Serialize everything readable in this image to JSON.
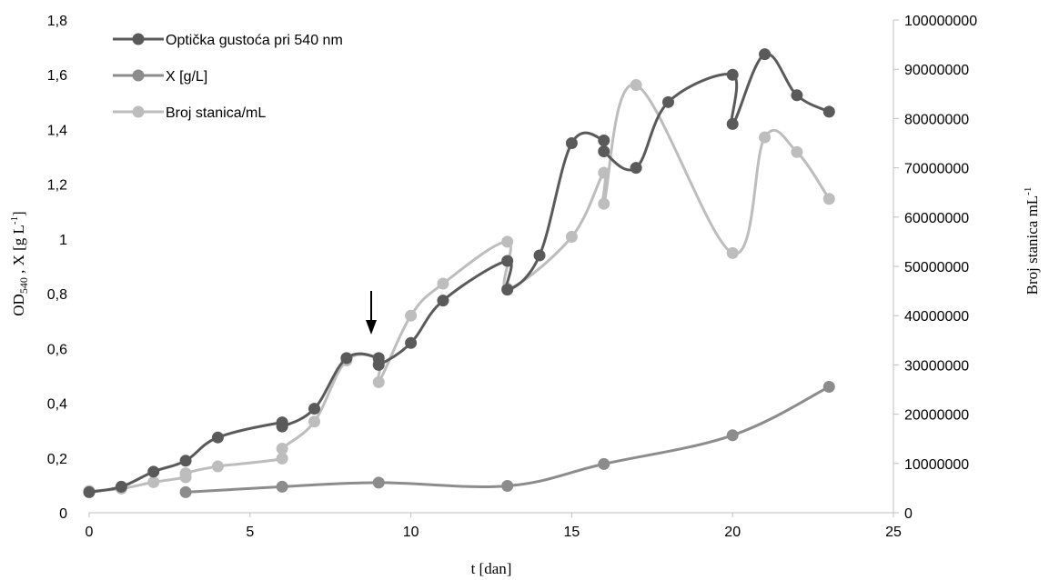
{
  "chart_data": {
    "type": "line",
    "xlabel": "t [dan]",
    "ylabel_main": "OD",
    "ylabel_sub": "540",
    "ylabel_rest": " , X [g L",
    "ylabel_sup": "-1",
    "ylabel_end": "]",
    "y2label_main": "Broj stanica mL",
    "y2label_sup": "-1",
    "xlim": [
      0,
      25
    ],
    "ylim": [
      0,
      1.8
    ],
    "y2lim": [
      0,
      100000000
    ],
    "x_ticks": [
      "0",
      "5",
      "10",
      "15",
      "20",
      "25"
    ],
    "y_ticks": [
      "0",
      "0,2",
      "0,4",
      "0,6",
      "0,8",
      "1",
      "1,2",
      "1,4",
      "1,6",
      "1,8"
    ],
    "y2_ticks": [
      "0",
      "10000000",
      "20000000",
      "30000000",
      "40000000",
      "50000000",
      "60000000",
      "70000000",
      "80000000",
      "90000000",
      "100000000"
    ],
    "legend_position": "top-left",
    "annotation": "arrow-down at t≈8.8",
    "series": [
      {
        "name": "Optička gustoća pri 540 nm",
        "axis": "left",
        "color": "#5a5a5a",
        "points": [
          [
            0,
            0.075
          ],
          [
            1,
            0.095
          ],
          [
            2,
            0.15
          ],
          [
            3,
            0.19
          ],
          [
            4,
            0.275
          ],
          [
            6,
            0.33
          ],
          [
            6,
            0.315
          ],
          [
            7,
            0.38
          ],
          [
            8,
            0.565
          ],
          [
            9,
            0.565
          ],
          [
            9,
            0.54
          ],
          [
            10,
            0.62
          ],
          [
            11,
            0.775
          ],
          [
            13,
            0.92
          ],
          [
            13,
            0.815
          ],
          [
            14,
            0.94
          ],
          [
            15,
            1.35
          ],
          [
            16,
            1.36
          ],
          [
            16,
            1.32
          ],
          [
            17,
            1.26
          ],
          [
            18,
            1.5
          ],
          [
            20,
            1.6
          ],
          [
            20,
            1.42
          ],
          [
            21,
            1.675
          ],
          [
            22,
            1.525
          ],
          [
            23,
            1.465
          ]
        ]
      },
      {
        "name": "X [g/L]",
        "axis": "left",
        "color": "#8c8c8c",
        "points": [
          [
            3,
            0.075
          ],
          [
            6,
            0.095
          ],
          [
            9,
            0.11
          ],
          [
            13,
            0.098
          ],
          [
            16,
            0.178
          ],
          [
            20,
            0.283
          ],
          [
            23,
            0.46
          ]
        ]
      },
      {
        "name": "Broj stanica/mL",
        "axis": "right",
        "color": "#bdbdbd",
        "points": [
          [
            0,
            4400000
          ],
          [
            1,
            4900000
          ],
          [
            2,
            6200000
          ],
          [
            3,
            7200000
          ],
          [
            3,
            8000000
          ],
          [
            4,
            9400000
          ],
          [
            6,
            11000000
          ],
          [
            6,
            13000000
          ],
          [
            7,
            18500000
          ],
          [
            8,
            30900000
          ],
          [
            9,
            31000000
          ],
          [
            9,
            26500000
          ],
          [
            10,
            40000000
          ],
          [
            11,
            46500000
          ],
          [
            13,
            55000000
          ],
          [
            13,
            45500000
          ],
          [
            15,
            56000000
          ],
          [
            16,
            69000000
          ],
          [
            16,
            62700000
          ],
          [
            17,
            86800000
          ],
          [
            20,
            52700000
          ],
          [
            21,
            76200000
          ],
          [
            22,
            73200000
          ],
          [
            23,
            63700000
          ]
        ]
      }
    ]
  }
}
